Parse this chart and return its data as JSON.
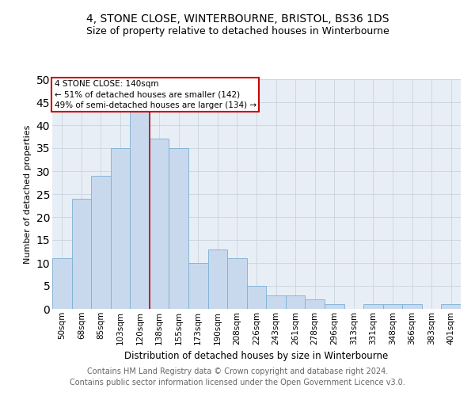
{
  "title1": "4, STONE CLOSE, WINTERBOURNE, BRISTOL, BS36 1DS",
  "title2": "Size of property relative to detached houses in Winterbourne",
  "xlabel": "Distribution of detached houses by size in Winterbourne",
  "ylabel": "Number of detached properties",
  "categories": [
    "50sqm",
    "68sqm",
    "85sqm",
    "103sqm",
    "120sqm",
    "138sqm",
    "155sqm",
    "173sqm",
    "190sqm",
    "208sqm",
    "226sqm",
    "243sqm",
    "261sqm",
    "278sqm",
    "296sqm",
    "313sqm",
    "331sqm",
    "348sqm",
    "366sqm",
    "383sqm",
    "401sqm"
  ],
  "values": [
    11,
    24,
    29,
    35,
    46,
    37,
    35,
    10,
    13,
    11,
    5,
    3,
    3,
    2,
    1,
    0,
    1,
    1,
    1,
    0,
    1
  ],
  "bar_color": "#c9d9ed",
  "bar_edge_color": "#7bafd4",
  "grid_color": "#c8d4e0",
  "marker_idx": 4,
  "marker_label": "4 STONE CLOSE: 140sqm",
  "annotation_line1": "← 51% of detached houses are smaller (142)",
  "annotation_line2": "49% of semi-detached houses are larger (134) →",
  "annotation_box_color": "#ffffff",
  "annotation_box_edge": "#cc0000",
  "marker_line_color": "#cc0000",
  "footnote1": "Contains HM Land Registry data © Crown copyright and database right 2024.",
  "footnote2": "Contains public sector information licensed under the Open Government Licence v3.0.",
  "bg_color": "#e8eef6",
  "ylim": [
    0,
    50
  ],
  "title1_fontsize": 10,
  "title2_fontsize": 9,
  "xlabel_fontsize": 8.5,
  "ylabel_fontsize": 8,
  "tick_fontsize": 7.5,
  "annotation_fontsize": 7.5,
  "footnote_fontsize": 7
}
